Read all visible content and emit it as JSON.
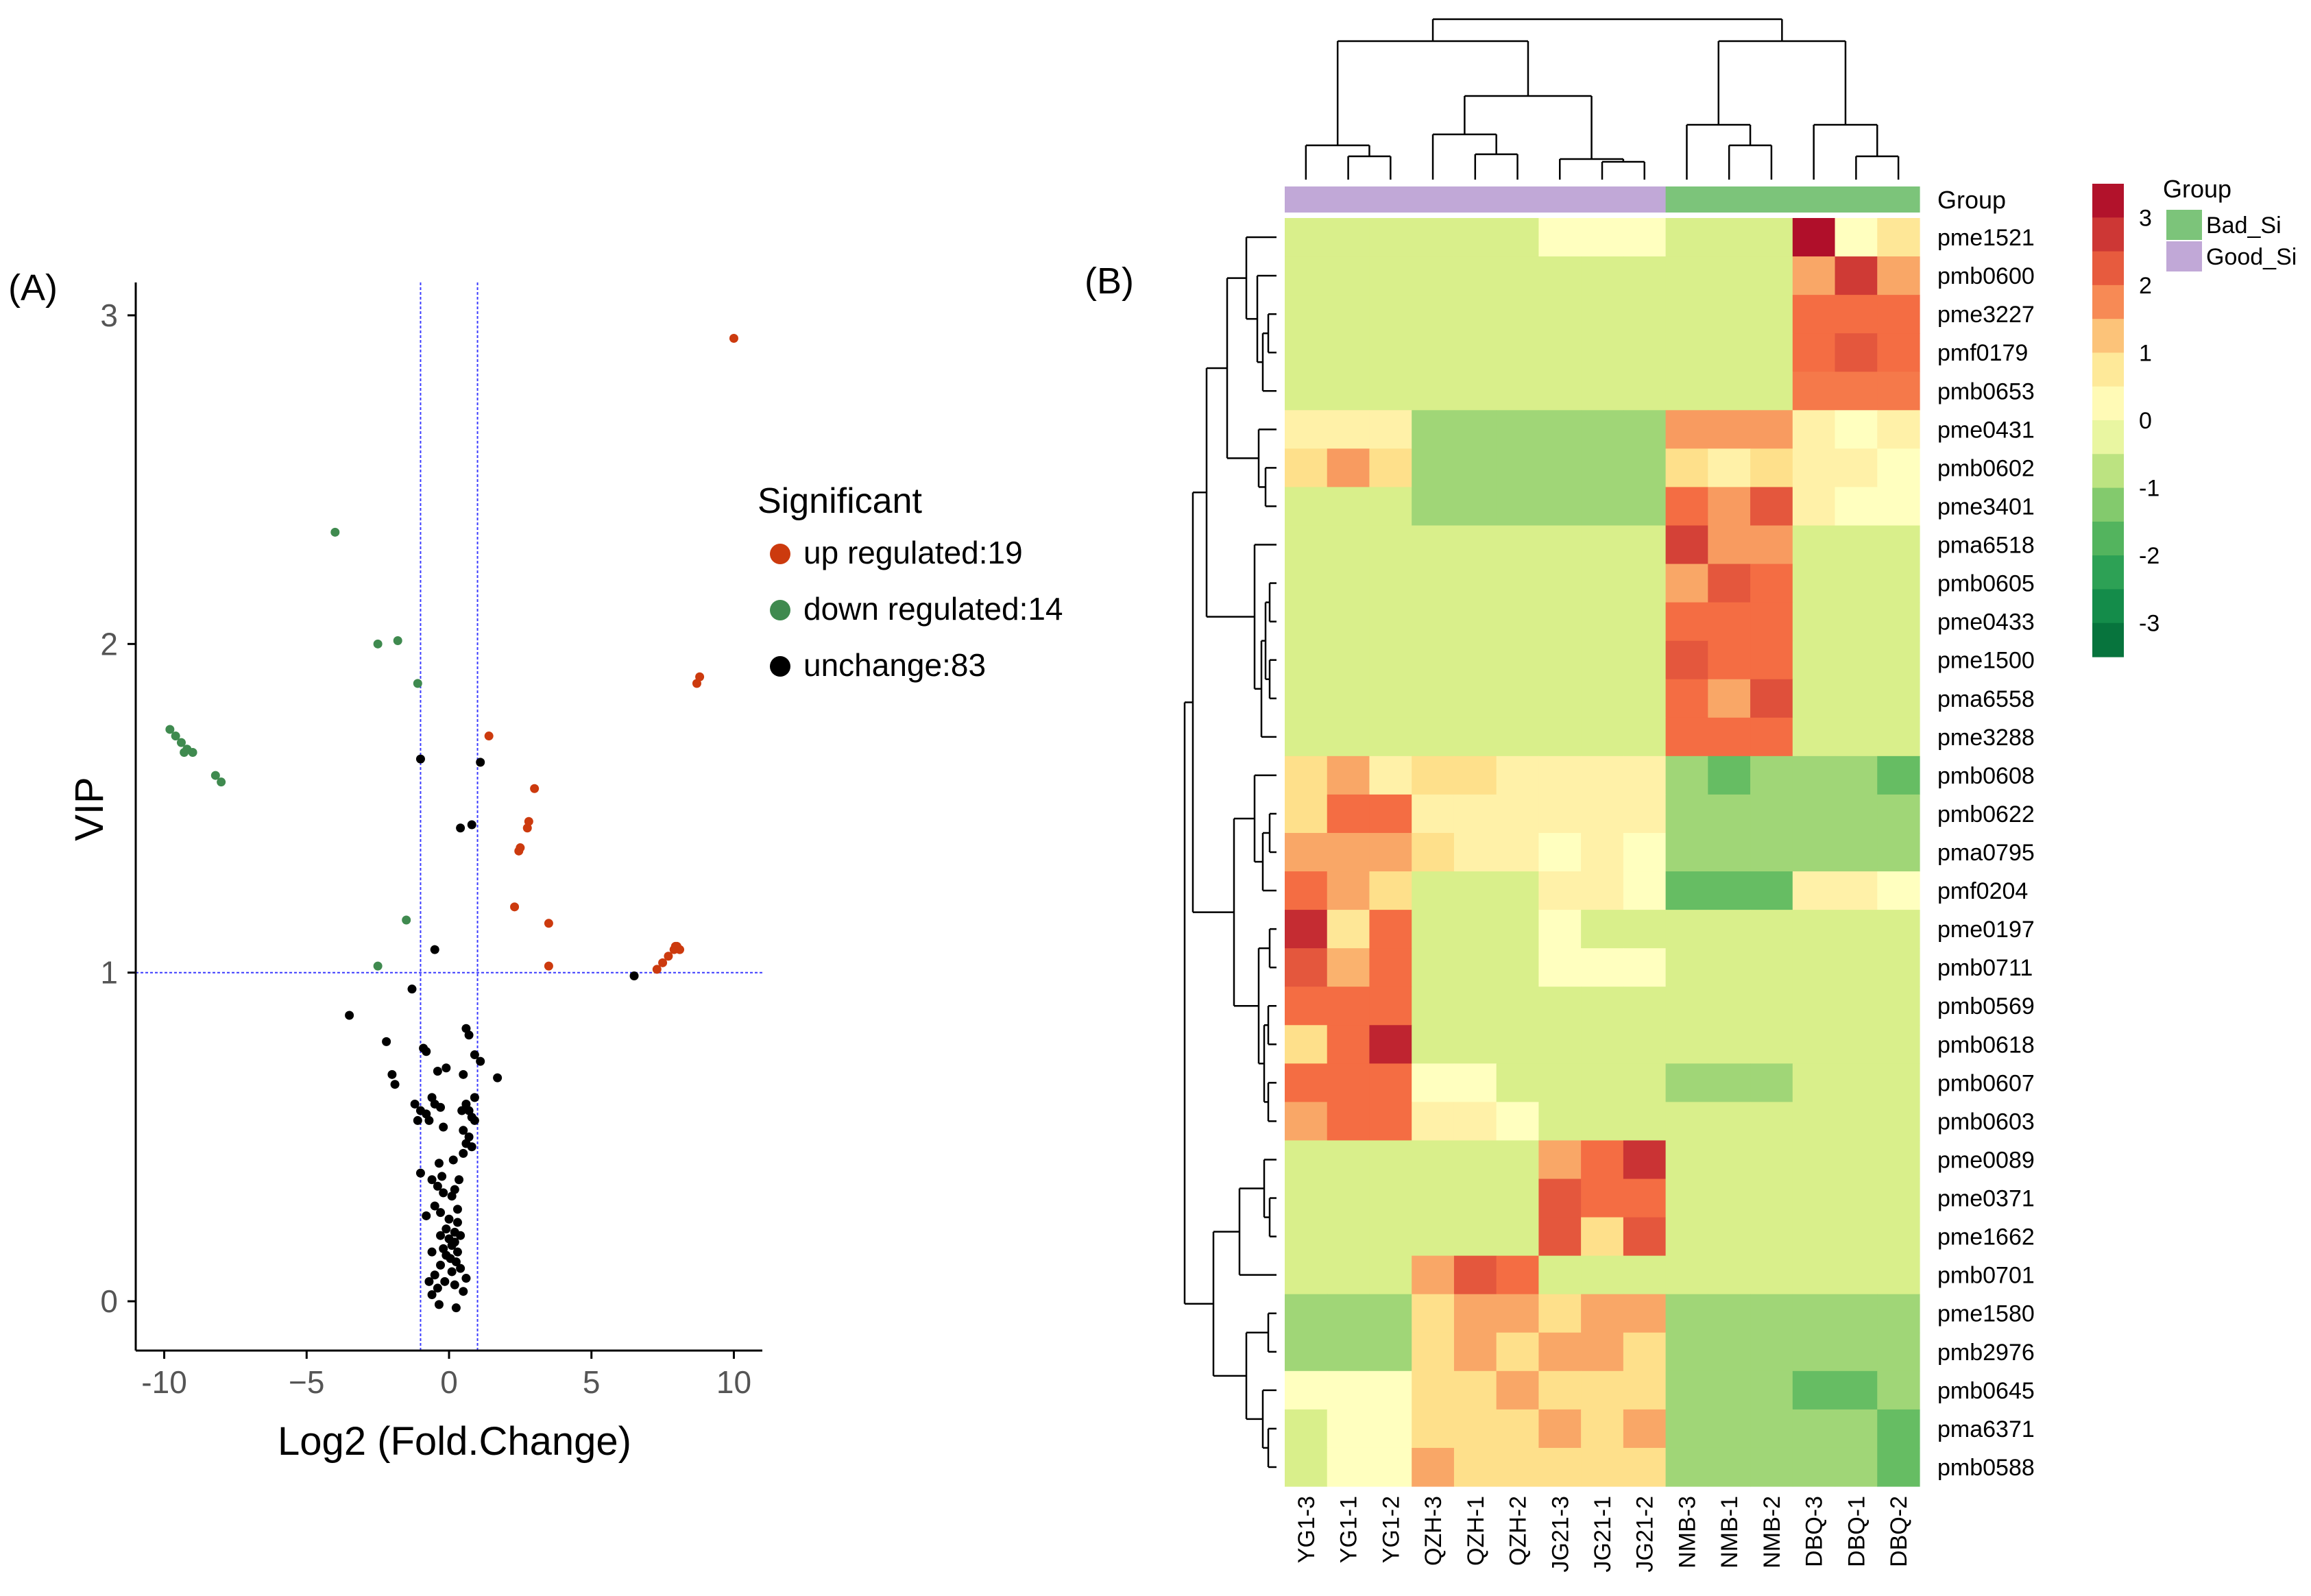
{
  "chart_data": [
    {
      "type": "scatter",
      "panel_label": "(A)",
      "xlabel": "Log2 (Fold.Change)",
      "ylabel": "VIP",
      "xlim": [
        -11,
        11
      ],
      "ylim": [
        -0.15,
        3.1
      ],
      "xticks": [
        -10,
        -5,
        0,
        5,
        10
      ],
      "xtick_labels": [
        "-10",
        "−5",
        "0",
        "5",
        "10"
      ],
      "yticks": [
        0,
        1,
        2,
        3
      ],
      "ytick_labels": [
        "0",
        "1",
        "2",
        "3"
      ],
      "thresholds": {
        "x": [
          -1,
          1
        ],
        "y": 1
      },
      "legend": {
        "title": "Significant",
        "entries": [
          {
            "key": "up",
            "label": "up regulated:19",
            "color": "#cc3a0e"
          },
          {
            "key": "down",
            "label": "down regulated:14",
            "color": "#3f8a4f"
          },
          {
            "key": "unchange",
            "label": "unchange:83",
            "color": "#000000"
          }
        ]
      },
      "series": [
        {
          "name": "up",
          "points": [
            [
              10.0,
              2.93
            ],
            [
              8.8,
              1.9
            ],
            [
              8.7,
              1.88
            ],
            [
              1.4,
              1.72
            ],
            [
              3.0,
              1.56
            ],
            [
              2.8,
              1.46
            ],
            [
              2.75,
              1.44
            ],
            [
              2.5,
              1.38
            ],
            [
              2.45,
              1.37
            ],
            [
              2.3,
              1.2
            ],
            [
              3.5,
              1.15
            ],
            [
              3.5,
              1.02
            ],
            [
              8.0,
              1.08
            ],
            [
              7.9,
              1.07
            ],
            [
              7.7,
              1.05
            ],
            [
              7.5,
              1.03
            ],
            [
              7.3,
              1.01
            ],
            [
              8.1,
              1.07
            ],
            [
              7.95,
              1.08
            ]
          ]
        },
        {
          "name": "down",
          "points": [
            [
              -4.0,
              2.34
            ],
            [
              -2.5,
              2.0
            ],
            [
              -1.8,
              2.01
            ],
            [
              -1.1,
              1.88
            ],
            [
              -9.8,
              1.74
            ],
            [
              -9.6,
              1.72
            ],
            [
              -9.4,
              1.7
            ],
            [
              -9.2,
              1.68
            ],
            [
              -9.0,
              1.67
            ],
            [
              -8.2,
              1.6
            ],
            [
              -8.0,
              1.58
            ],
            [
              -1.5,
              1.16
            ],
            [
              -2.5,
              1.02
            ],
            [
              -9.3,
              1.67
            ]
          ]
        },
        {
          "name": "unchange",
          "points": [
            [
              6.5,
              0.99
            ],
            [
              -1.0,
              1.65
            ],
            [
              1.1,
              1.64
            ],
            [
              0.8,
              1.45
            ],
            [
              0.4,
              1.44
            ],
            [
              -0.5,
              1.07
            ],
            [
              -1.3,
              0.95
            ],
            [
              -3.5,
              0.87
            ],
            [
              -2.2,
              0.79
            ],
            [
              -2.0,
              0.69
            ],
            [
              -1.9,
              0.66
            ],
            [
              1.7,
              0.68
            ],
            [
              0.6,
              0.83
            ],
            [
              0.7,
              0.81
            ],
            [
              -0.9,
              0.77
            ],
            [
              -0.8,
              0.76
            ],
            [
              0.9,
              0.75
            ],
            [
              1.1,
              0.73
            ],
            [
              -0.1,
              0.71
            ],
            [
              -0.4,
              0.7
            ],
            [
              0.5,
              0.69
            ],
            [
              -1.2,
              0.6
            ],
            [
              -1.0,
              0.58
            ],
            [
              -0.8,
              0.57
            ],
            [
              -0.6,
              0.62
            ],
            [
              -0.5,
              0.6
            ],
            [
              -0.3,
              0.59
            ],
            [
              -0.7,
              0.55
            ],
            [
              -0.2,
              0.53
            ],
            [
              0.6,
              0.6
            ],
            [
              0.7,
              0.58
            ],
            [
              0.8,
              0.56
            ],
            [
              0.9,
              0.55
            ],
            [
              0.5,
              0.52
            ],
            [
              0.7,
              0.5
            ],
            [
              0.6,
              0.48
            ],
            [
              0.8,
              0.47
            ],
            [
              0.5,
              0.45
            ],
            [
              -1.0,
              0.39
            ],
            [
              -0.6,
              0.37
            ],
            [
              -0.4,
              0.35
            ],
            [
              -0.2,
              0.33
            ],
            [
              0.2,
              0.34
            ],
            [
              0.1,
              0.32
            ],
            [
              -0.5,
              0.29
            ],
            [
              -0.3,
              0.27
            ],
            [
              -0.8,
              0.26
            ],
            [
              0.0,
              0.25
            ],
            [
              0.3,
              0.24
            ],
            [
              -0.1,
              0.22
            ],
            [
              0.2,
              0.21
            ],
            [
              0.4,
              0.2
            ],
            [
              -0.3,
              0.2
            ],
            [
              0.0,
              0.19
            ],
            [
              0.2,
              0.18
            ],
            [
              0.1,
              0.17
            ],
            [
              -0.2,
              0.16
            ],
            [
              0.3,
              0.15
            ],
            [
              -0.1,
              0.14
            ],
            [
              0.05,
              0.13
            ],
            [
              0.25,
              0.12
            ],
            [
              -0.3,
              0.11
            ],
            [
              0.4,
              0.1
            ],
            [
              0.1,
              0.09
            ],
            [
              -0.5,
              0.08
            ],
            [
              0.6,
              0.07
            ],
            [
              -0.7,
              0.06
            ],
            [
              0.2,
              0.05
            ],
            [
              -0.4,
              0.04
            ],
            [
              0.5,
              0.03
            ],
            [
              -0.6,
              0.02
            ],
            [
              0.3,
              0.28
            ],
            [
              -0.6,
              0.15
            ],
            [
              0.15,
              0.43
            ],
            [
              -0.35,
              0.42
            ],
            [
              0.9,
              0.62
            ],
            [
              -1.1,
              0.55
            ],
            [
              -0.25,
              0.38
            ],
            [
              0.35,
              0.37
            ],
            [
              0.45,
              0.58
            ],
            [
              -0.15,
              0.06
            ],
            [
              0.25,
              -0.02
            ],
            [
              -0.35,
              -0.01
            ]
          ]
        }
      ]
    },
    {
      "type": "heatmap",
      "panel_label": "(B)",
      "columns": [
        "YG1-3",
        "YG1-1",
        "YG1-2",
        "QZH-3",
        "QZH-1",
        "QZH-2",
        "JG21-3",
        "JG21-1",
        "JG21-2",
        "NMB-3",
        "NMB-1",
        "NMB-2",
        "DBQ-3",
        "DBQ-1",
        "DBQ-2"
      ],
      "column_groups": [
        "Good_Si",
        "Good_Si",
        "Good_Si",
        "Good_Si",
        "Good_Si",
        "Good_Si",
        "Good_Si",
        "Good_Si",
        "Good_Si",
        "Bad_Si",
        "Bad_Si",
        "Bad_Si",
        "Bad_Si",
        "Bad_Si",
        "Bad_Si"
      ],
      "group_colors": {
        "Bad_Si": "#7cc47a",
        "Good_Si": "#c1a8d7"
      },
      "group_label": "Group",
      "legend_title": "Group",
      "legend_entries": [
        "Bad_Si",
        "Good_Si"
      ],
      "colorbar": {
        "min": -3.5,
        "max": 3.5,
        "ticks": [
          3,
          2,
          1,
          0,
          -1,
          -2,
          -3
        ],
        "tick_labels": [
          "3",
          "2",
          "1",
          "0",
          "-1",
          "-2",
          "-3"
        ]
      },
      "rows": [
        "pme1521",
        "pmb0600",
        "pme3227",
        "pmf0179",
        "pmb0653",
        "pme0431",
        "pmb0602",
        "pme3401",
        "pma6518",
        "pmb0605",
        "pme0433",
        "pme1500",
        "pma6558",
        "pme3288",
        "pmb0608",
        "pmb0622",
        "pma0795",
        "pmf0204",
        "pme0197",
        "pmb0711",
        "pmb0569",
        "pmb0618",
        "pmb0607",
        "pmb0603",
        "pme0089",
        "pme0371",
        "pme1662",
        "pmb0701",
        "pme1580",
        "pmb2976",
        "pmb0645",
        "pma6371",
        "pmb0588"
      ],
      "values": [
        [
          -0.5,
          -0.5,
          -0.5,
          -0.5,
          -0.5,
          -0.5,
          0.1,
          0.1,
          0.1,
          -0.5,
          -0.5,
          -0.5,
          3.3,
          0.1,
          0.8
        ],
        [
          -0.5,
          -0.5,
          -0.5,
          -0.5,
          -0.5,
          -0.5,
          -0.5,
          -0.5,
          -0.5,
          -0.5,
          -0.5,
          -0.5,
          1.5,
          2.7,
          1.5
        ],
        [
          -0.5,
          -0.5,
          -0.5,
          -0.5,
          -0.5,
          -0.5,
          -0.5,
          -0.5,
          -0.5,
          -0.5,
          -0.5,
          -0.5,
          2.0,
          2.0,
          2.0
        ],
        [
          -0.5,
          -0.5,
          -0.5,
          -0.5,
          -0.5,
          -0.5,
          -0.5,
          -0.5,
          -0.5,
          -0.5,
          -0.5,
          -0.5,
          2.0,
          2.3,
          2.0
        ],
        [
          -0.5,
          -0.5,
          -0.5,
          -0.5,
          -0.5,
          -0.5,
          -0.5,
          -0.5,
          -0.5,
          -0.5,
          -0.5,
          -0.5,
          1.9,
          1.9,
          1.9
        ],
        [
          0.5,
          0.5,
          0.5,
          -1.0,
          -1.0,
          -1.0,
          -1.0,
          -1.0,
          -1.0,
          1.6,
          1.6,
          1.6,
          0.5,
          0.1,
          0.5
        ],
        [
          1.0,
          1.6,
          1.0,
          -1.0,
          -1.0,
          -1.0,
          -1.0,
          -1.0,
          -1.0,
          1.0,
          0.5,
          1.0,
          0.5,
          0.5,
          0.1
        ],
        [
          -0.5,
          -0.5,
          -0.5,
          -1.0,
          -1.0,
          -1.0,
          -1.0,
          -1.0,
          -1.0,
          2.0,
          1.6,
          2.3,
          0.5,
          0.1,
          0.1
        ],
        [
          -0.5,
          -0.5,
          -0.5,
          -0.5,
          -0.5,
          -0.5,
          -0.5,
          -0.5,
          -0.5,
          2.6,
          1.6,
          1.6,
          -0.5,
          -0.5,
          -0.5
        ],
        [
          -0.5,
          -0.5,
          -0.5,
          -0.5,
          -0.5,
          -0.5,
          -0.5,
          -0.5,
          -0.5,
          1.5,
          2.3,
          2.0,
          -0.5,
          -0.5,
          -0.5
        ],
        [
          -0.5,
          -0.5,
          -0.5,
          -0.5,
          -0.5,
          -0.5,
          -0.5,
          -0.5,
          -0.5,
          2.0,
          2.0,
          2.0,
          -0.5,
          -0.5,
          -0.5
        ],
        [
          -0.5,
          -0.5,
          -0.5,
          -0.5,
          -0.5,
          -0.5,
          -0.5,
          -0.5,
          -0.5,
          2.3,
          2.0,
          2.0,
          -0.5,
          -0.5,
          -0.5
        ],
        [
          -0.5,
          -0.5,
          -0.5,
          -0.5,
          -0.5,
          -0.5,
          -0.5,
          -0.5,
          -0.5,
          2.0,
          1.5,
          2.4,
          -0.5,
          -0.5,
          -0.5
        ],
        [
          -0.5,
          -0.5,
          -0.5,
          -0.5,
          -0.5,
          -0.5,
          -0.5,
          -0.5,
          -0.5,
          2.0,
          2.0,
          2.0,
          -0.5,
          -0.5,
          -0.5
        ],
        [
          1.0,
          1.5,
          0.5,
          1.0,
          1.0,
          0.5,
          0.5,
          0.5,
          0.5,
          -1.0,
          -1.5,
          -1.0,
          -1.0,
          -1.0,
          -1.5
        ],
        [
          1.0,
          2.0,
          2.0,
          0.5,
          0.5,
          0.5,
          0.5,
          0.5,
          0.5,
          -1.0,
          -1.0,
          -1.0,
          -1.0,
          -1.0,
          -1.0
        ],
        [
          1.5,
          1.5,
          1.5,
          1.0,
          0.5,
          0.5,
          0.1,
          0.5,
          0.1,
          -1.0,
          -1.0,
          -1.0,
          -1.0,
          -1.0,
          -1.0
        ],
        [
          2.0,
          1.5,
          1.0,
          -0.5,
          -0.5,
          -0.5,
          0.5,
          0.5,
          0.1,
          -1.5,
          -1.5,
          -1.5,
          0.5,
          0.5,
          0.1
        ],
        [
          2.9,
          0.8,
          2.0,
          -0.5,
          -0.5,
          -0.5,
          0.1,
          -0.5,
          -0.5,
          -0.5,
          -0.5,
          -0.5,
          -0.5,
          -0.5,
          -0.5
        ],
        [
          2.3,
          1.4,
          2.0,
          -0.5,
          -0.5,
          -0.5,
          0.1,
          0.1,
          0.1,
          -0.5,
          -0.5,
          -0.5,
          -0.5,
          -0.5,
          -0.5
        ],
        [
          2.0,
          2.0,
          2.0,
          -0.5,
          -0.5,
          -0.5,
          -0.5,
          -0.5,
          -0.5,
          -0.5,
          -0.5,
          -0.5,
          -0.5,
          -0.5,
          -0.5
        ],
        [
          1.0,
          2.0,
          3.0,
          -0.5,
          -0.5,
          -0.5,
          -0.5,
          -0.5,
          -0.5,
          -0.5,
          -0.5,
          -0.5,
          -0.5,
          -0.5,
          -0.5
        ],
        [
          2.0,
          2.0,
          2.0,
          0.1,
          0.1,
          -0.5,
          -0.5,
          -0.5,
          -0.5,
          -1.0,
          -1.0,
          -1.0,
          -0.5,
          -0.5,
          -0.5
        ],
        [
          1.5,
          2.0,
          2.0,
          0.5,
          0.5,
          0.1,
          -0.5,
          -0.5,
          -0.5,
          -0.5,
          -0.5,
          -0.5,
          -0.5,
          -0.5,
          -0.5
        ],
        [
          -0.5,
          -0.5,
          -0.5,
          -0.5,
          -0.5,
          -0.5,
          1.5,
          2.0,
          2.8,
          -0.5,
          -0.5,
          -0.5,
          -0.5,
          -0.5,
          -0.5
        ],
        [
          -0.5,
          -0.5,
          -0.5,
          -0.5,
          -0.5,
          -0.5,
          2.3,
          2.0,
          2.0,
          -0.5,
          -0.5,
          -0.5,
          -0.5,
          -0.5,
          -0.5
        ],
        [
          -0.5,
          -0.5,
          -0.5,
          -0.5,
          -0.5,
          -0.5,
          2.3,
          1.0,
          2.3,
          -0.5,
          -0.5,
          -0.5,
          -0.5,
          -0.5,
          -0.5
        ],
        [
          -0.5,
          -0.5,
          -0.5,
          1.5,
          2.3,
          2.0,
          -0.5,
          -0.5,
          -0.5,
          -0.5,
          -0.5,
          -0.5,
          -0.5,
          -0.5,
          -0.5
        ],
        [
          -1.0,
          -1.0,
          -1.0,
          1.0,
          1.5,
          1.5,
          1.0,
          1.5,
          1.5,
          -1.0,
          -1.0,
          -1.0,
          -1.0,
          -1.0,
          -1.0
        ],
        [
          -1.0,
          -1.0,
          -1.0,
          1.0,
          1.5,
          1.0,
          1.5,
          1.5,
          1.0,
          -1.0,
          -1.0,
          -1.0,
          -1.0,
          -1.0,
          -1.0
        ],
        [
          0.1,
          0.1,
          0.1,
          1.0,
          1.0,
          1.5,
          1.0,
          1.0,
          1.0,
          -1.0,
          -1.0,
          -1.0,
          -1.5,
          -1.5,
          -1.0
        ],
        [
          -0.5,
          0.1,
          0.1,
          1.0,
          1.0,
          1.0,
          1.5,
          1.0,
          1.5,
          -1.0,
          -1.0,
          -1.0,
          -1.0,
          -1.0,
          -1.5
        ],
        [
          -0.5,
          0.1,
          0.1,
          1.5,
          1.0,
          1.0,
          1.0,
          1.0,
          1.0,
          -1.0,
          -1.0,
          -1.0,
          -1.0,
          -1.0,
          -1.5
        ]
      ]
    }
  ]
}
